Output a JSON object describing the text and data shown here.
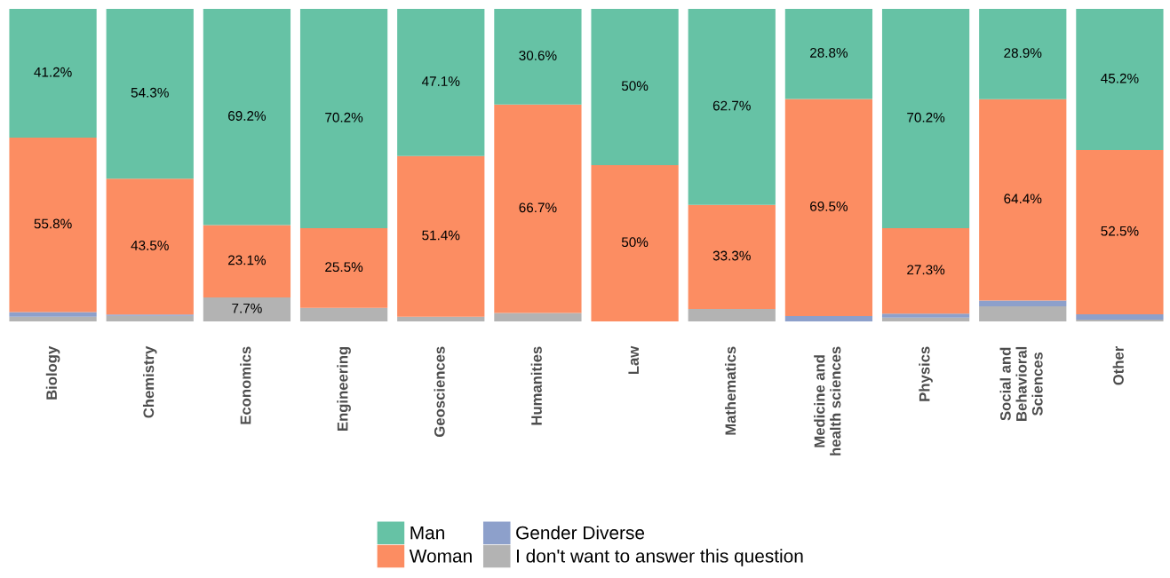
{
  "chart_data": {
    "type": "bar",
    "stacked": true,
    "categories": [
      "Biology",
      "Chemistry",
      "Economics",
      "Engineering",
      "Geosciences",
      "Humanities",
      "Law",
      "Mathematics",
      "Medicine and\nhealth sciences",
      "Physics",
      "Social and\nBehavioral\nSciences",
      "Other"
    ],
    "series": [
      {
        "name": "I don't want to answer this question",
        "color": "#b3b3b3",
        "values": [
          1.5,
          1.8,
          7.7,
          4.3,
          1.5,
          2.7,
          0,
          4.0,
          0,
          1.2,
          4.8,
          0.6
        ],
        "value_labels": [
          null,
          null,
          "7.7%",
          null,
          null,
          null,
          null,
          null,
          null,
          null,
          null,
          null
        ]
      },
      {
        "name": "Gender Diverse",
        "color": "#8da0cb",
        "values": [
          1.5,
          0.4,
          0,
          0,
          0,
          0,
          0,
          0,
          1.7,
          1.3,
          1.9,
          1.7
        ],
        "value_labels": [
          null,
          null,
          null,
          null,
          null,
          null,
          null,
          null,
          null,
          null,
          null,
          null
        ]
      },
      {
        "name": "Woman",
        "color": "#fc8d62",
        "values": [
          55.8,
          43.5,
          23.1,
          25.5,
          51.4,
          66.7,
          50,
          33.3,
          69.5,
          27.3,
          64.4,
          52.5
        ],
        "value_labels": [
          "55.8%",
          "43.5%",
          "23.1%",
          "25.5%",
          "51.4%",
          "66.7%",
          "50%",
          "33.3%",
          "69.5%",
          "27.3%",
          "64.4%",
          "52.5%"
        ]
      },
      {
        "name": "Man",
        "color": "#66c2a5",
        "values": [
          41.2,
          54.3,
          69.2,
          70.2,
          47.1,
          30.6,
          50,
          62.7,
          28.8,
          70.2,
          28.9,
          45.2
        ],
        "value_labels": [
          "41.2%",
          "54.3%",
          "69.2%",
          "70.2%",
          "47.1%",
          "30.6%",
          "50%",
          "62.7%",
          "28.8%",
          "70.2%",
          "28.9%",
          "45.2%"
        ]
      }
    ],
    "ylim": [
      0,
      100
    ],
    "tick_labels": "x",
    "legend": "bottom"
  }
}
